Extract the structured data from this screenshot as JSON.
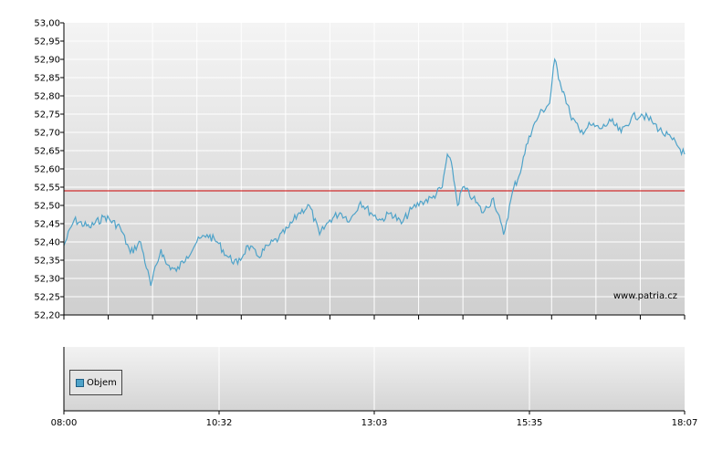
{
  "chart_data": [
    {
      "type": "line",
      "xlabel": "",
      "ylabel": "",
      "x_range": [
        "08:00",
        "18:07"
      ],
      "ylim": [
        52.2,
        53.0
      ],
      "y_ticks": [
        "52,20",
        "52,25",
        "52,30",
        "52,35",
        "52,40",
        "52,45",
        "52,50",
        "52,55",
        "52,60",
        "52,65",
        "52,70",
        "52,75",
        "52,80",
        "52,85",
        "52,90",
        "52,95",
        "53,00"
      ],
      "grid": true,
      "reference_line": {
        "value": 52.54,
        "color": "#cc0000"
      },
      "watermark": "www.patria.cz",
      "series": [
        {
          "color": "#4fa3c9",
          "x": [
            "08:00",
            "08:10",
            "08:25",
            "08:40",
            "08:55",
            "09:05",
            "09:15",
            "09:25",
            "09:35",
            "09:40",
            "09:50",
            "10:00",
            "10:10",
            "10:20",
            "10:30",
            "10:40",
            "10:50",
            "11:00",
            "11:10",
            "11:20",
            "11:30",
            "11:40",
            "11:50",
            "12:00",
            "12:10",
            "12:20",
            "12:30",
            "12:40",
            "12:50",
            "13:00",
            "13:10",
            "13:20",
            "13:30",
            "13:40",
            "13:50",
            "14:00",
            "14:10",
            "14:15",
            "14:20",
            "14:25",
            "14:30",
            "14:40",
            "14:50",
            "15:00",
            "15:10",
            "15:20",
            "15:25",
            "15:35",
            "15:45",
            "15:55",
            "16:00",
            "16:05",
            "16:10",
            "16:15",
            "16:25",
            "16:35",
            "16:45",
            "16:55",
            "17:05",
            "17:15",
            "17:25",
            "17:35",
            "17:45",
            "17:55",
            "18:07"
          ],
          "y": [
            52.39,
            52.46,
            52.44,
            52.47,
            52.44,
            52.37,
            52.4,
            52.28,
            52.38,
            52.34,
            52.32,
            52.36,
            52.4,
            52.42,
            52.4,
            52.36,
            52.34,
            52.39,
            52.36,
            52.39,
            52.41,
            52.44,
            52.48,
            52.5,
            52.42,
            52.46,
            52.48,
            52.46,
            52.51,
            52.48,
            52.46,
            52.48,
            52.45,
            52.49,
            52.51,
            52.52,
            52.55,
            52.64,
            52.6,
            52.5,
            52.55,
            52.52,
            52.48,
            52.52,
            52.42,
            52.55,
            52.58,
            52.69,
            52.75,
            52.78,
            52.9,
            52.84,
            52.8,
            52.75,
            52.7,
            52.72,
            52.71,
            52.73,
            52.7,
            52.74,
            52.75,
            52.73,
            52.7,
            52.68,
            52.64
          ]
        }
      ]
    },
    {
      "type": "bar",
      "legend": [
        "Objem"
      ],
      "legend_position": "bottom-left",
      "x_ticks": [
        "08:00",
        "10:32",
        "13:03",
        "15:35",
        "18:07"
      ],
      "series": [
        {
          "name": "Objem",
          "color": "#4fa3c9",
          "values": []
        }
      ]
    }
  ]
}
